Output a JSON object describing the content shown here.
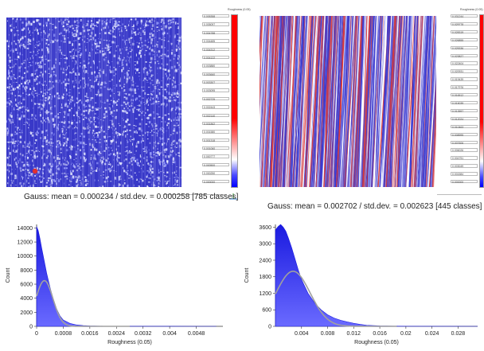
{
  "left_panel": {
    "map_name": "roughness-map-left",
    "scale_title": "Roughness (0.05)",
    "scale_labels": [
      "0.005358",
      "0.005097",
      "0.004788",
      "0.004485",
      "0.004312",
      "0.004122",
      "0.003880",
      "0.003660",
      "0.003307",
      "0.003095",
      "0.002725",
      "0.002443",
      "0.002140",
      "0.001862",
      "0.001580",
      "0.001318",
      "0.001060",
      "0.000777",
      "0.000500",
      "0.000250",
      "0.000000"
    ],
    "gauss_text": "Gauss: mean = 0.000234 / std.dev. = 0.000258 [785 classes]",
    "colors": {
      "background": "#3838c8",
      "speck": "#e8ecff",
      "hot": "#e03030"
    }
  },
  "right_panel": {
    "map_name": "roughness-map-right",
    "scale_title": "Roughness (0.05)",
    "scale_labels": [
      "0.031244",
      "0.029778",
      "0.028319",
      "0.026855",
      "0.025336",
      "0.023827",
      "0.022404",
      "0.020931",
      "0.019439",
      "0.017976",
      "0.016512",
      "0.015039",
      "0.013597",
      "0.012024",
      "0.010463",
      "0.008995",
      "0.007606",
      "0.006026",
      "0.004751",
      "0.003049",
      "0.001584",
      "0.000000"
    ],
    "gauss_text": "Gauss: mean = 0.002702 / std.dev. = 0.002623 [445 classes]",
    "colors": {
      "blue": "#3a3ad0",
      "red": "#d83a3a",
      "white": "#ffffff"
    }
  },
  "chart_data": [
    {
      "type": "area",
      "xlabel": "Roughness (0.05)",
      "ylabel": "Count",
      "xlim": [
        0,
        0.0056
      ],
      "ylim": [
        0,
        14500
      ],
      "x_ticks": [
        "0",
        "0.0008",
        "0.0016",
        "0.0024",
        "0.0032",
        "0.004",
        "0.0048"
      ],
      "y_ticks": [
        "0",
        "2000",
        "4000",
        "6000",
        "8000",
        "10000",
        "12000",
        "14000"
      ],
      "x": [
        0,
        5e-05,
        0.0001,
        0.00015,
        0.0002,
        0.0003,
        0.0004,
        0.0005,
        0.0006,
        0.0007,
        0.0008,
        0.001,
        0.0012,
        0.0014,
        0.0016,
        0.002,
        0.0024,
        0.0032,
        0.004,
        0.0048,
        0.0054
      ],
      "values": [
        14200,
        13600,
        12500,
        11200,
        10000,
        7600,
        5600,
        3900,
        2500,
        1500,
        900,
        420,
        200,
        110,
        60,
        25,
        12,
        5,
        2,
        1,
        0
      ],
      "gauss_curve": {
        "mean": 0.000234,
        "std": 0.000258,
        "peak": 6500
      },
      "colors": {
        "fill": "#1a1ae0",
        "gauss": "#a0a0a0"
      }
    },
    {
      "type": "area",
      "xlabel": "Roughness (0.05)",
      "ylabel": "Count",
      "xlim": [
        0,
        0.031
      ],
      "ylim": [
        0,
        3700
      ],
      "x_ticks": [
        "0.004",
        "0.008",
        "0.012",
        "0.016",
        "0.02",
        "0.024",
        "0.028"
      ],
      "x_tick_values": [
        0.004,
        0.008,
        0.012,
        0.016,
        0.02,
        0.024,
        0.028
      ],
      "y_ticks": [
        "0",
        "600",
        "1200",
        "1800",
        "2400",
        "3000",
        "3600"
      ],
      "x": [
        0,
        0.0004,
        0.0008,
        0.0012,
        0.0016,
        0.002,
        0.0025,
        0.003,
        0.0035,
        0.004,
        0.005,
        0.006,
        0.007,
        0.008,
        0.009,
        0.01,
        0.011,
        0.012,
        0.013,
        0.014,
        0.016,
        0.02,
        0.031
      ],
      "values": [
        3500,
        3620,
        3700,
        3600,
        3450,
        3200,
        2850,
        2450,
        2050,
        1700,
        1200,
        850,
        600,
        420,
        300,
        220,
        160,
        110,
        70,
        40,
        15,
        3,
        0
      ],
      "gauss_curve": {
        "mean": 0.002702,
        "std": 0.002623,
        "peak": 2000
      },
      "colors": {
        "fill": "#1a1ae0",
        "gauss": "#a0a0a0"
      }
    }
  ]
}
